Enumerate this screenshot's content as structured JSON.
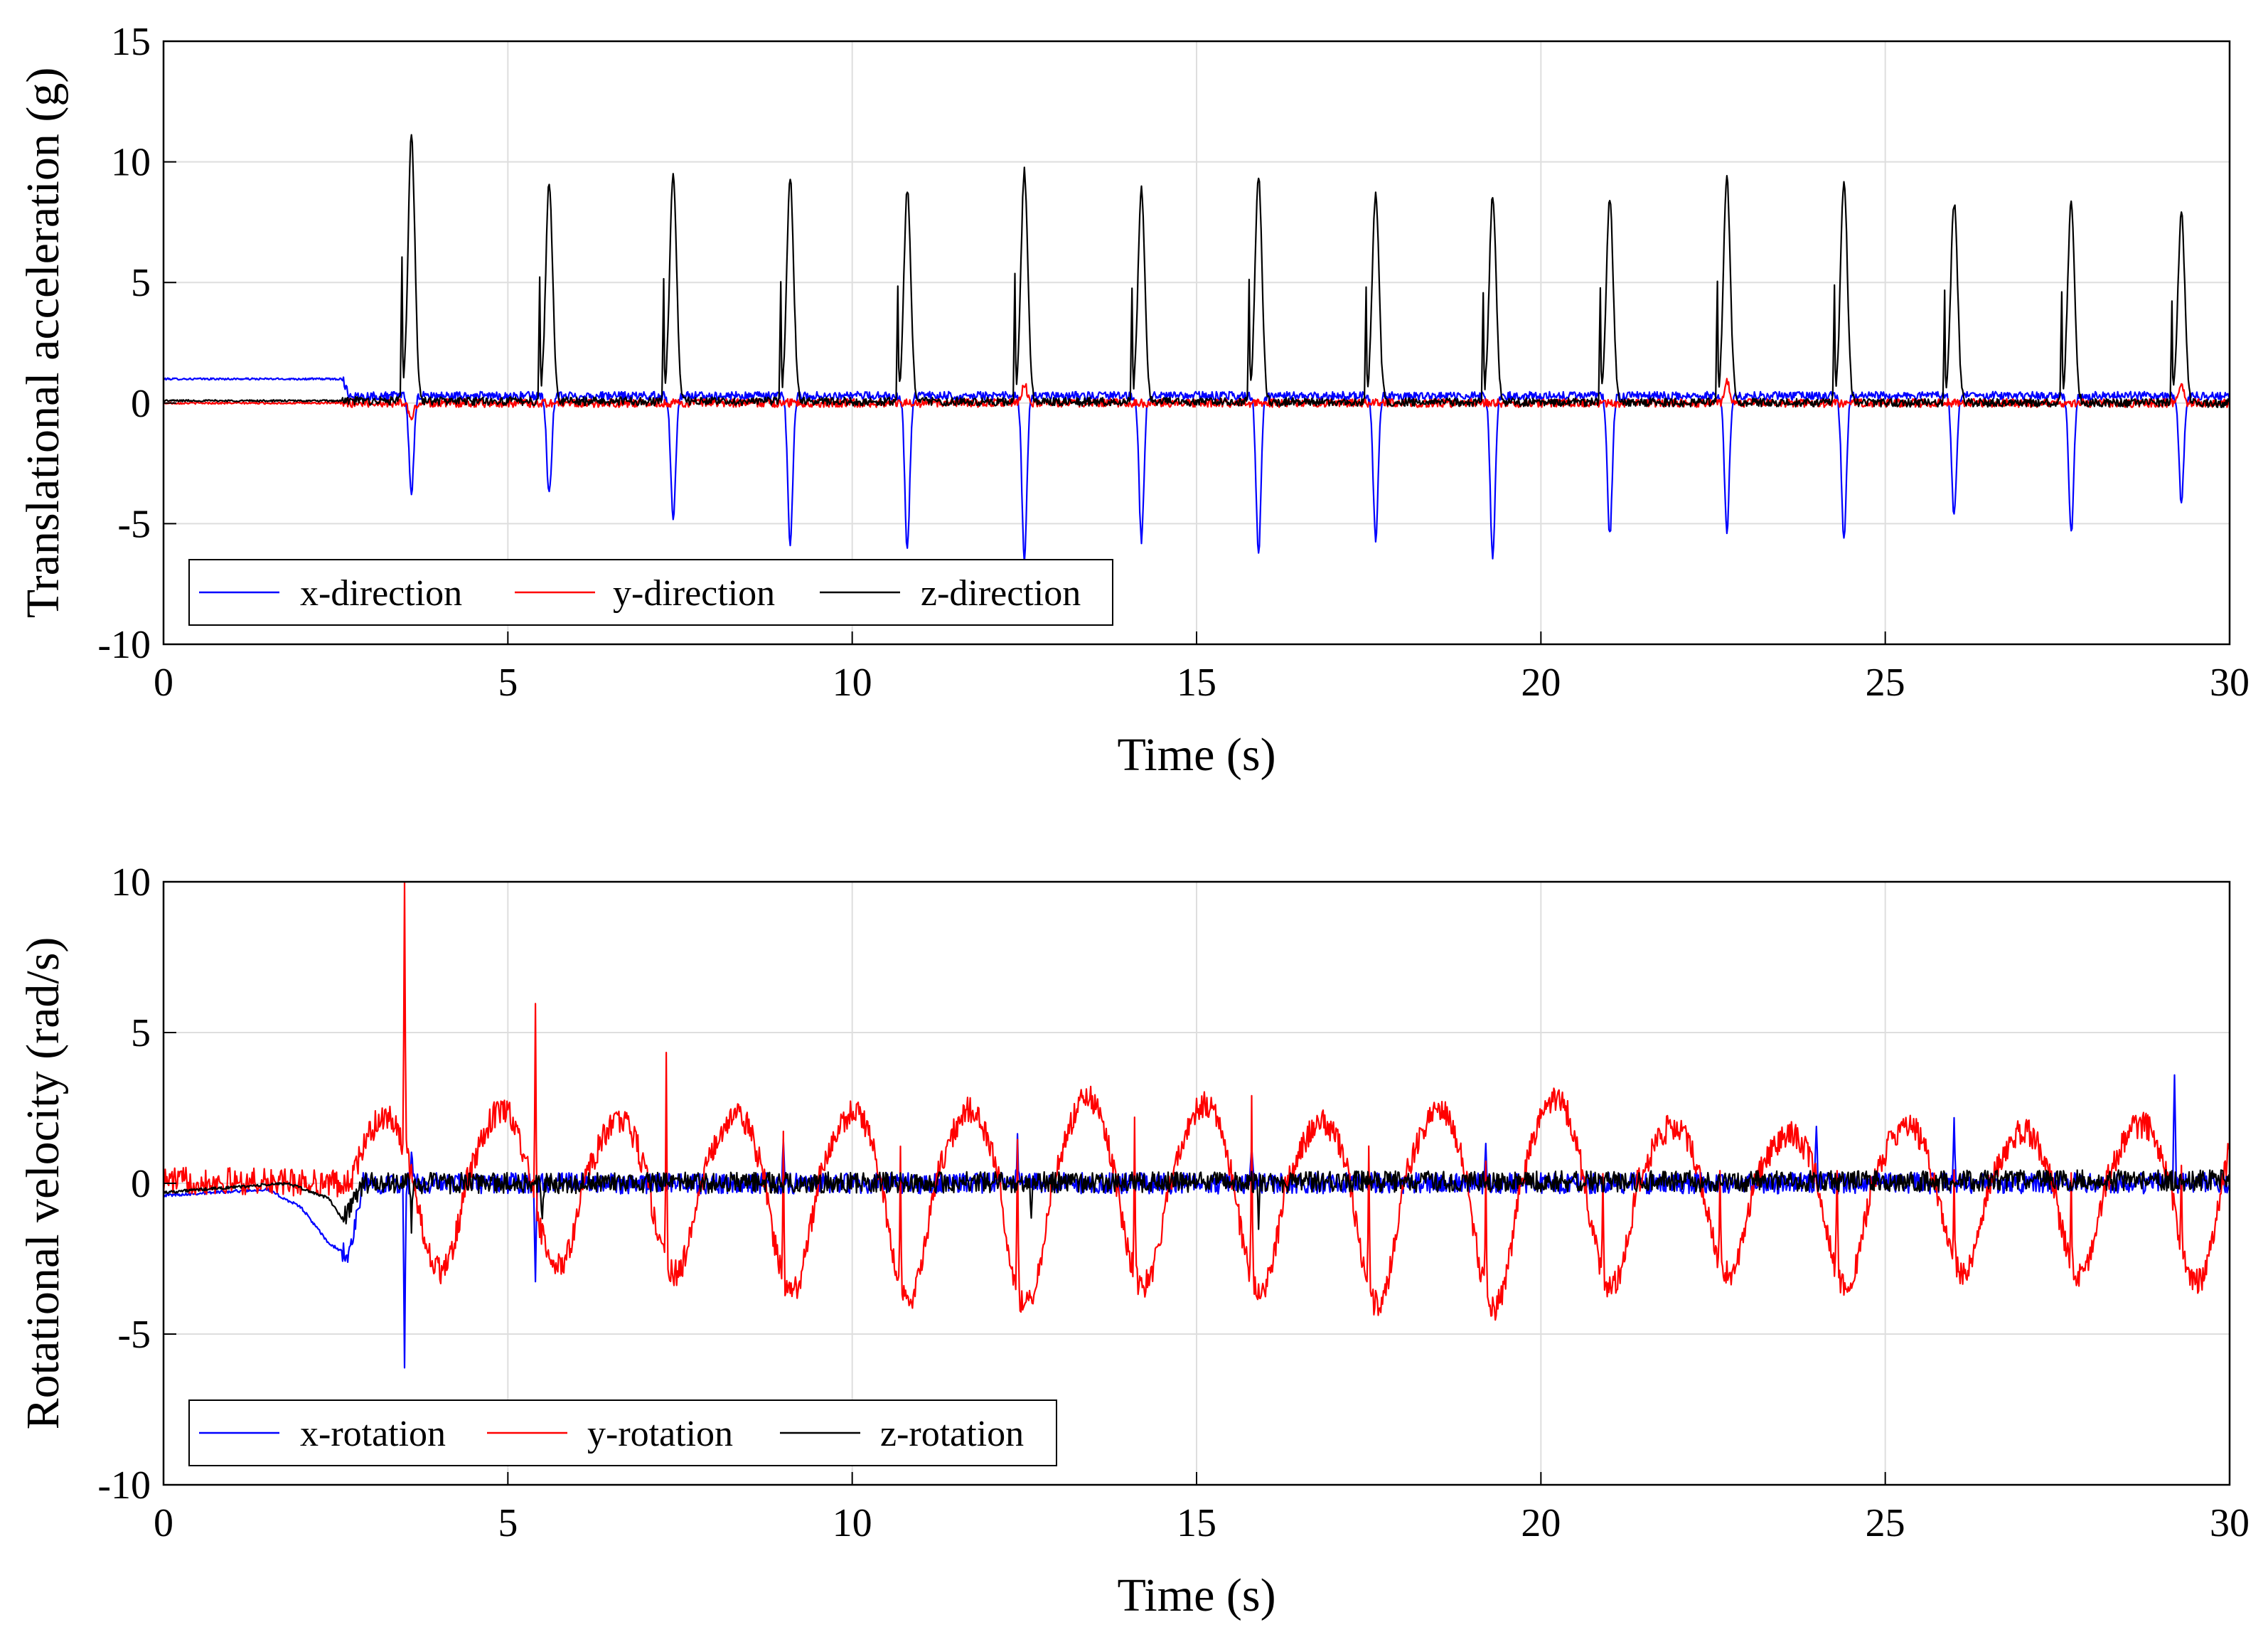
{
  "chart_data": [
    {
      "type": "line",
      "xlabel": "Time (s)",
      "ylabel": "Translational acceleration (g)",
      "xlim": [
        0,
        30
      ],
      "ylim": [
        -10,
        15
      ],
      "xticks": [
        "0",
        "5",
        "10",
        "15",
        "20",
        "25",
        "30"
      ],
      "yticks": [
        "-10",
        "-5",
        "0",
        "5",
        "10",
        "15"
      ],
      "grid": true,
      "legend": "bottom-left",
      "colors": {
        "x": "#0000ff",
        "y": "#ff0000",
        "z": "#000000"
      },
      "series": [
        {
          "name": "x-direction",
          "color": "#0000ff",
          "baseline": [
            [
              0,
              1.0
            ],
            [
              2.6,
              1.0
            ],
            [
              2.7,
              0.3
            ],
            [
              30,
              0.3
            ]
          ],
          "events": [
            {
              "t": 3.6,
              "v": -3.7
            },
            {
              "t": 5.6,
              "v": -3.8
            },
            {
              "t": 7.4,
              "v": -4.8
            },
            {
              "t": 9.1,
              "v": -5.9
            },
            {
              "t": 10.8,
              "v": -6.0
            },
            {
              "t": 12.5,
              "v": -6.5
            },
            {
              "t": 14.2,
              "v": -5.7
            },
            {
              "t": 15.9,
              "v": -6.2
            },
            {
              "t": 17.6,
              "v": -5.6
            },
            {
              "t": 19.3,
              "v": -6.4
            },
            {
              "t": 21.0,
              "v": -5.5
            },
            {
              "t": 22.7,
              "v": -5.3
            },
            {
              "t": 24.4,
              "v": -5.5
            },
            {
              "t": 26.0,
              "v": -4.7
            },
            {
              "t": 27.7,
              "v": -5.4
            },
            {
              "t": 29.3,
              "v": -4.1
            }
          ]
        },
        {
          "name": "y-direction",
          "color": "#ff0000",
          "baseline": [
            [
              0,
              0.0
            ],
            [
              30,
              0.0
            ]
          ],
          "events": [
            {
              "t": 3.6,
              "v": -0.7
            },
            {
              "t": 12.5,
              "v": 0.8
            },
            {
              "t": 22.7,
              "v": 1.0
            },
            {
              "t": 29.3,
              "v": 0.8
            }
          ]
        },
        {
          "name": "z-direction",
          "color": "#000000",
          "baseline": [
            [
              0,
              0.1
            ],
            [
              30,
              0.0
            ]
          ],
          "events": [
            {
              "t": 3.6,
              "v": 11.0
            },
            {
              "t": 5.6,
              "v": 9.1
            },
            {
              "t": 7.4,
              "v": 9.5
            },
            {
              "t": 9.1,
              "v": 9.3
            },
            {
              "t": 10.8,
              "v": 8.8
            },
            {
              "t": 12.5,
              "v": 9.6
            },
            {
              "t": 14.2,
              "v": 8.9
            },
            {
              "t": 15.9,
              "v": 9.4
            },
            {
              "t": 17.6,
              "v": 8.6
            },
            {
              "t": 19.3,
              "v": 8.6
            },
            {
              "t": 21.0,
              "v": 8.5
            },
            {
              "t": 22.7,
              "v": 9.3
            },
            {
              "t": 24.4,
              "v": 9.2
            },
            {
              "t": 26.0,
              "v": 8.3
            },
            {
              "t": 27.7,
              "v": 8.4
            },
            {
              "t": 29.3,
              "v": 7.9
            }
          ]
        }
      ]
    },
    {
      "type": "line",
      "xlabel": "Time (s)",
      "ylabel": "Rotational velocity (rad/s)",
      "xlim": [
        0,
        30
      ],
      "ylim": [
        -10,
        10
      ],
      "xticks": [
        "0",
        "5",
        "10",
        "15",
        "20",
        "25",
        "30"
      ],
      "yticks": [
        "-10",
        "-5",
        "0",
        "5",
        "10"
      ],
      "grid": true,
      "legend": "bottom-left",
      "colors": {
        "x": "#0000ff",
        "y": "#ff0000",
        "z": "#000000"
      },
      "series": [
        {
          "name": "x-rotation",
          "color": "#0000ff",
          "baseline": [
            [
              0,
              -0.4
            ],
            [
              1.5,
              -0.2
            ],
            [
              2.0,
              -0.8
            ],
            [
              2.4,
              -2.0
            ],
            [
              2.7,
              -2.4
            ],
            [
              2.9,
              0.0
            ],
            [
              30,
              0.0
            ]
          ],
          "events": [
            {
              "t": 3.5,
              "v": -5.8
            },
            {
              "t": 3.6,
              "v": 1.0
            },
            {
              "t": 5.4,
              "v": -3.2
            },
            {
              "t": 9.0,
              "v": 1.2
            },
            {
              "t": 12.4,
              "v": 1.4
            },
            {
              "t": 15.8,
              "v": 1.3
            },
            {
              "t": 19.2,
              "v": 1.2
            },
            {
              "t": 24.0,
              "v": 1.6
            },
            {
              "t": 26.0,
              "v": 2.4
            },
            {
              "t": 29.2,
              "v": 3.7
            }
          ]
        },
        {
          "name": "y-rotation",
          "color": "#ff0000",
          "baseline": [
            [
              0,
              0.1
            ],
            [
              2.7,
              0.0
            ],
            [
              30,
              0.0
            ]
          ],
          "cycles": [
            {
              "start": 2.7,
              "peak": 2.7,
              "trough": -2.9,
              "spike": 9.5,
              "spike_t": 3.5
            },
            {
              "start": 4.4,
              "peak": 3.0,
              "trough": -2.8,
              "spike": 6.3,
              "spike_t": 5.4
            },
            {
              "start": 6.1,
              "peak": 2.6,
              "trough": -3.0,
              "spike": 7.4,
              "spike_t": 7.3
            },
            {
              "start": 7.8,
              "peak": 2.8,
              "trough": -3.6,
              "spike": 4.5,
              "spike_t": 9.0
            },
            {
              "start": 9.5,
              "peak": 2.9,
              "trough": -3.8,
              "spike": 4.6,
              "spike_t": 10.7
            },
            {
              "start": 11.2,
              "peak": 3.0,
              "trough": -4.0,
              "spike": 5.3,
              "spike_t": 12.4
            },
            {
              "start": 12.9,
              "peak": 3.5,
              "trough": -3.4,
              "spike": 4.8,
              "spike_t": 14.1
            },
            {
              "start": 14.6,
              "peak": 3.2,
              "trough": -3.6,
              "spike": 6.4,
              "spike_t": 15.8
            },
            {
              "start": 16.3,
              "peak": 2.5,
              "trough": -4.0,
              "spike": 4.5,
              "spike_t": 17.5
            },
            {
              "start": 18.0,
              "peak": 3.0,
              "trough": -4.1,
              "spike": 4.3,
              "spike_t": 19.2
            },
            {
              "start": 19.7,
              "peak": 3.5,
              "trough": -3.4,
              "spike": 3.5,
              "spike_t": 20.9
            },
            {
              "start": 21.4,
              "peak": 2.3,
              "trough": -3.0,
              "spike": 3.4,
              "spike_t": 22.6
            },
            {
              "start": 23.1,
              "peak": 2.0,
              "trough": -3.4,
              "spike": 3.8,
              "spike_t": 24.3
            },
            {
              "start": 24.8,
              "peak": 2.4,
              "trough": -3.0,
              "spike": 3.3,
              "spike_t": 26.0
            },
            {
              "start": 26.5,
              "peak": 2.1,
              "trough": -3.0,
              "spike": 2.8,
              "spike_t": 27.7
            },
            {
              "start": 28.2,
              "peak": 2.4,
              "trough": -3.3,
              "spike": 2.9,
              "spike_t": 29.3
            }
          ]
        },
        {
          "name": "z-rotation",
          "color": "#000000",
          "baseline": [
            [
              0,
              -0.3
            ],
            [
              1.8,
              0.0
            ],
            [
              2.4,
              -0.5
            ],
            [
              2.6,
              -1.2
            ],
            [
              2.9,
              0.0
            ],
            [
              30,
              0.1
            ]
          ],
          "events": [
            {
              "t": 3.6,
              "v": -1.4
            },
            {
              "t": 5.5,
              "v": -1.5
            },
            {
              "t": 12.6,
              "v": -1.3
            },
            {
              "t": 15.9,
              "v": -1.3
            }
          ]
        }
      ]
    }
  ]
}
